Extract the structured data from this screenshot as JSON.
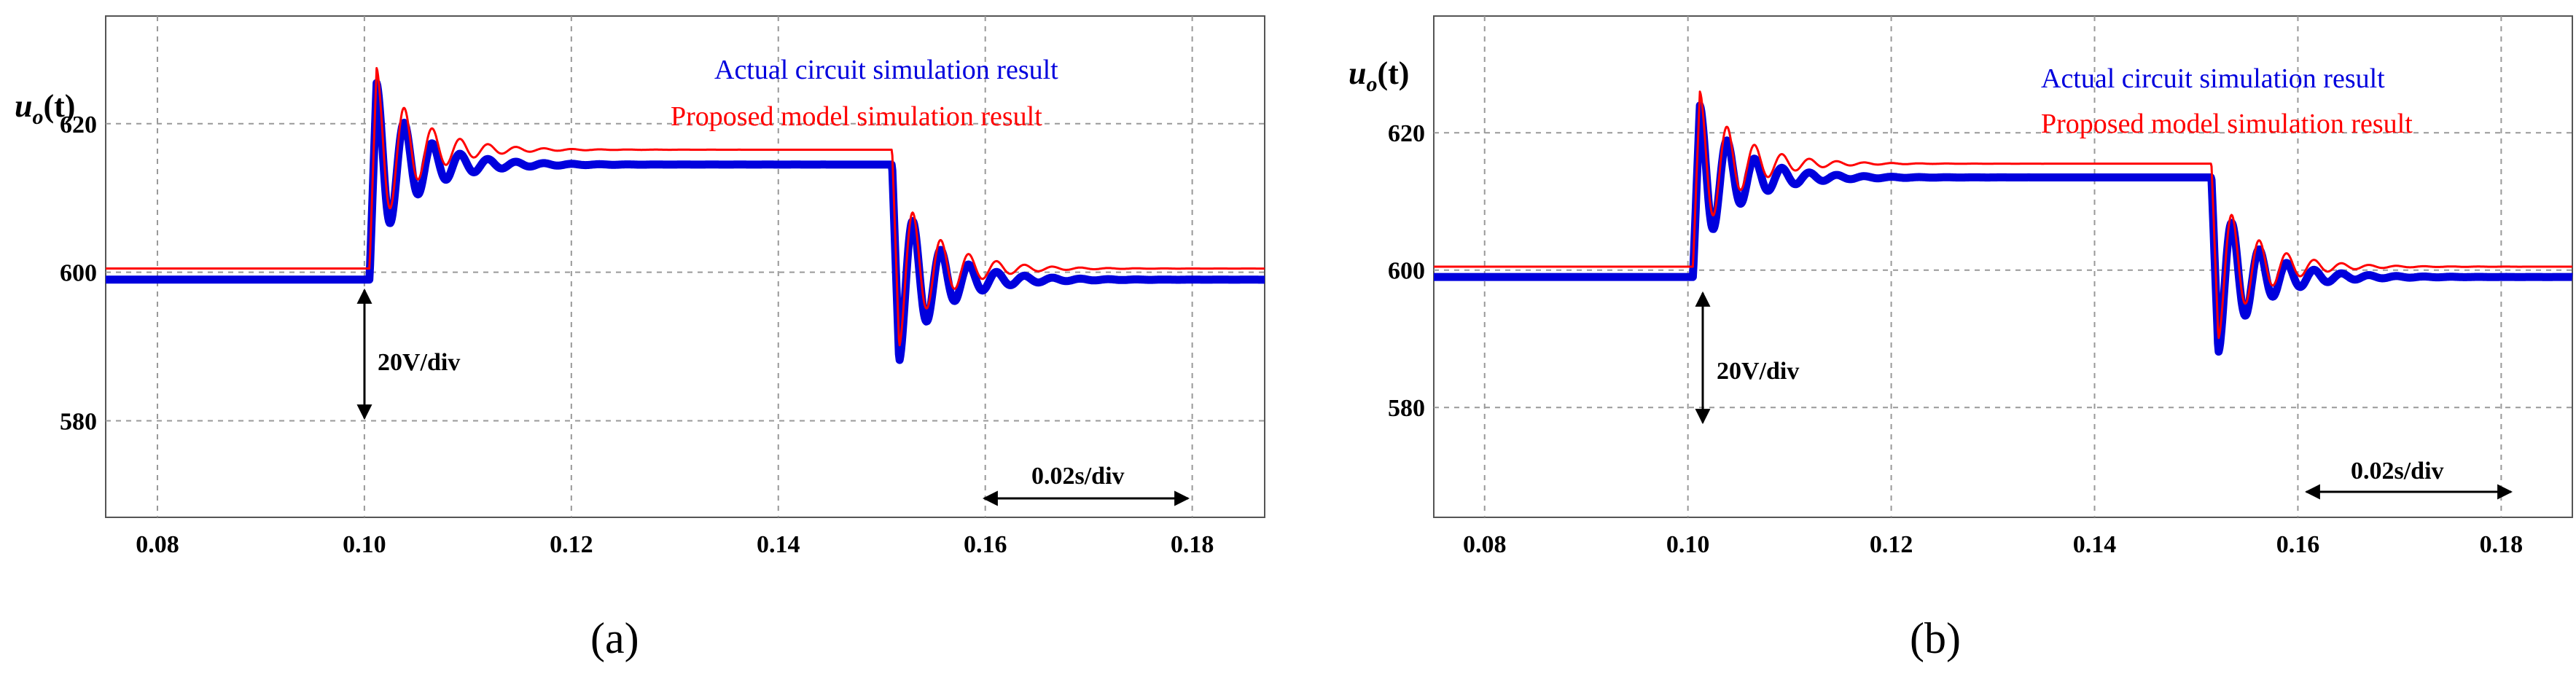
{
  "chart_data": [
    {
      "type": "line",
      "panel_label": "(a)",
      "ylabel": "u",
      "ylabel_sub": "o",
      "ylabel_suffix": "(t)",
      "xlim": [
        0.075,
        0.187
      ],
      "ylim": [
        567,
        634.5
      ],
      "xticks": [
        0.08,
        0.1,
        0.12,
        0.14,
        0.16,
        0.18
      ],
      "xtick_labels": [
        "0.08",
        "0.10",
        "0.12",
        "0.14",
        "0.16",
        "0.18"
      ],
      "yticks": [
        580,
        600,
        620
      ],
      "ytick_labels": [
        "580",
        "600",
        "620"
      ],
      "grid": true,
      "legend_position": "top-right",
      "series": [
        {
          "name": "Actual circuit simulation result",
          "color": "#0000dd",
          "base": 599,
          "high": 614.5,
          "step_up": 0.1005,
          "step_down": 0.151,
          "peak_up": 625.5,
          "peak_down": 588,
          "decay_ms": 4.0,
          "period_ms": 2.7
        },
        {
          "name": "Proposed model simulation result",
          "color": "#ff0000",
          "base": 600.5,
          "high": 616.5,
          "step_up": 0.1005,
          "step_down": 0.151,
          "peak_up": 627.5,
          "peak_down": 590,
          "decay_ms": 4.0,
          "period_ms": 2.7
        }
      ],
      "annotations": {
        "voltage_div": "20V/div",
        "time_div": "0.02s/div"
      }
    },
    {
      "type": "line",
      "panel_label": "(b)",
      "ylabel": "u",
      "ylabel_sub": "o",
      "ylabel_suffix": "(t)",
      "xlim": [
        0.075,
        0.187
      ],
      "ylim": [
        564,
        637
      ],
      "xticks": [
        0.08,
        0.1,
        0.12,
        0.14,
        0.16,
        0.18
      ],
      "xtick_labels": [
        "0.08",
        "0.10",
        "0.12",
        "0.14",
        "0.16",
        "0.18"
      ],
      "yticks": [
        580,
        600,
        620
      ],
      "ytick_labels": [
        "580",
        "600",
        "620"
      ],
      "grid": true,
      "legend_position": "top-right",
      "series": [
        {
          "name": "Actual circuit simulation result",
          "color": "#0000dd",
          "base": 599,
          "high": 613.5,
          "step_up": 0.1005,
          "step_down": 0.1515,
          "peak_up": 624,
          "peak_down": 588,
          "decay_ms": 4.0,
          "period_ms": 2.7
        },
        {
          "name": "Proposed model simulation result",
          "color": "#ff0000",
          "base": 600.5,
          "high": 615.5,
          "step_up": 0.1005,
          "step_down": 0.1515,
          "peak_up": 626,
          "peak_down": 590,
          "decay_ms": 4.0,
          "period_ms": 2.7
        }
      ],
      "annotations": {
        "voltage_div": "20V/div",
        "time_div": "0.02s/div"
      }
    }
  ]
}
